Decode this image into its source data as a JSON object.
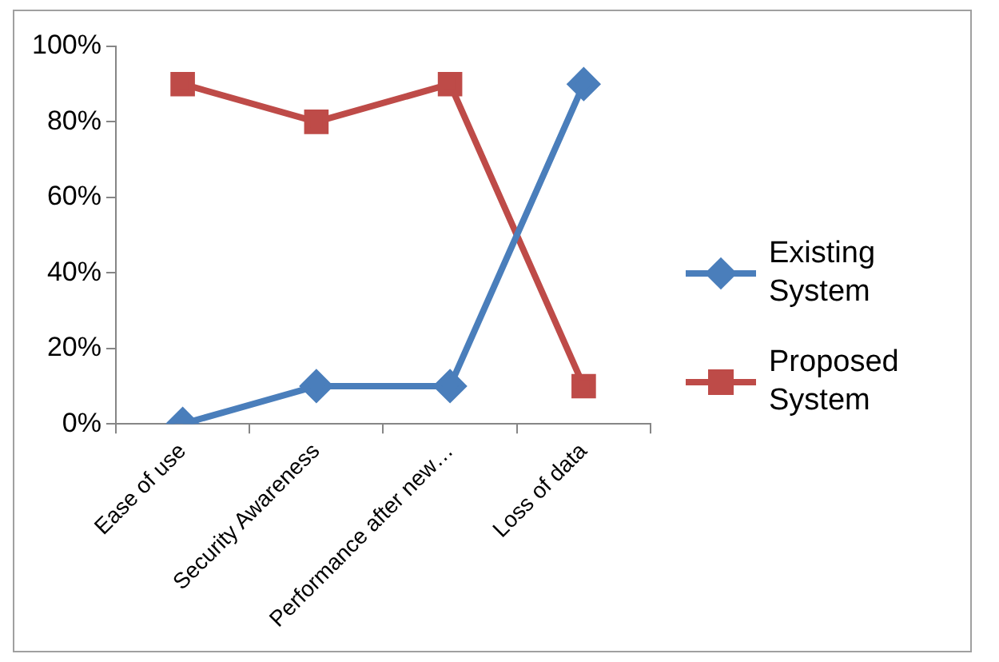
{
  "chart_data": {
    "type": "line",
    "categories": [
      "Ease of use",
      "Security Awareness",
      "Performance after new…",
      "Loss of data"
    ],
    "series": [
      {
        "name": "Existing System",
        "color": "#4a7ebb",
        "marker": "diamond",
        "values": [
          0,
          10,
          10,
          90
        ]
      },
      {
        "name": "Proposed System",
        "color": "#be4b48",
        "marker": "square",
        "values": [
          90,
          80,
          90,
          10
        ]
      }
    ],
    "ylim": [
      0,
      100
    ],
    "yticks": [
      {
        "value": 0,
        "label": "0%"
      },
      {
        "value": 20,
        "label": "20%"
      },
      {
        "value": 40,
        "label": "40%"
      },
      {
        "value": 60,
        "label": "60%"
      },
      {
        "value": 80,
        "label": "80%"
      },
      {
        "value": 100,
        "label": "100%"
      }
    ],
    "grid": false,
    "legend": "right"
  }
}
